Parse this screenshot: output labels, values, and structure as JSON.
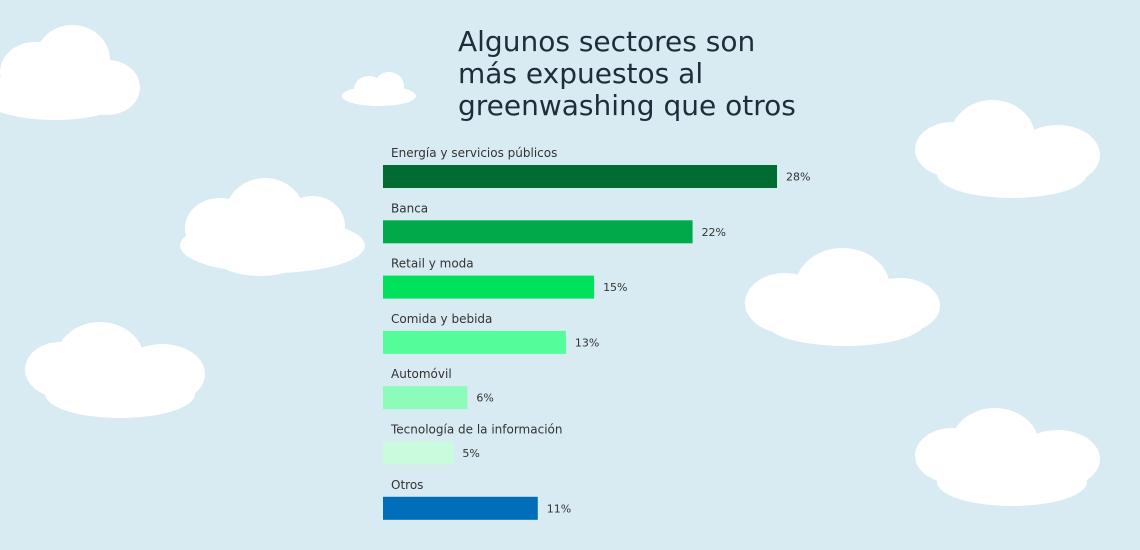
{
  "title_lines": [
    "Algunos sectores son",
    "más expuestos al",
    "greenwashing que otros"
  ],
  "chart_data": {
    "type": "bar",
    "orientation": "horizontal",
    "title": "Algunos sectores son más expuestos al greenwashing que otros",
    "categories": [
      "Energía y servicios públicos",
      "Banca",
      "Retail y moda",
      "Comida y bebida",
      "Automóvil",
      "Tecnología de la información",
      "Otros"
    ],
    "values": [
      28,
      22,
      15,
      13,
      6,
      5,
      11
    ],
    "value_labels": [
      "28%",
      "22%",
      "15%",
      "13%",
      "6%",
      "5%",
      "11%"
    ],
    "colors": [
      "#006c31",
      "#00aa4a",
      "#00e15c",
      "#55fd9a",
      "#8dfbba",
      "#c8fcdc",
      "#006eb8"
    ],
    "unit": "%",
    "xlim": [
      0,
      28
    ],
    "grid": false,
    "legend": "none"
  },
  "colors": {
    "background": "#d8ebf2",
    "clouds": "#ffffff",
    "title": "#1f2d3a",
    "labels": "#333333"
  }
}
